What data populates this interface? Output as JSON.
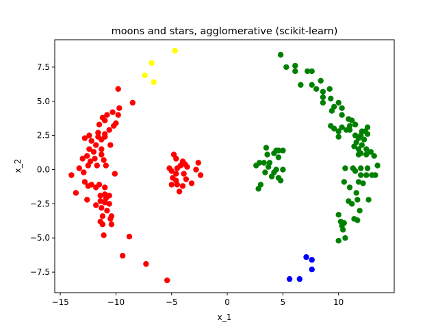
{
  "chart_data": {
    "type": "scatter",
    "title": "moons and stars, agglomerative (scikit-learn)",
    "xlabel": "x_1",
    "ylabel": "x_2",
    "xlim": [
      -15.5,
      15
    ],
    "ylim": [
      -9.0,
      9.5
    ],
    "xticks": [
      -15,
      -10,
      -5,
      0,
      5,
      10
    ],
    "yticks": [
      -7.5,
      -5.0,
      -2.5,
      0.0,
      2.5,
      5.0,
      7.5
    ],
    "xtick_labels": [
      "−15",
      "−10",
      "−5",
      "0",
      "5",
      "10"
    ],
    "ytick_labels": [
      "−7.5",
      "−5.0",
      "−2.5",
      "0.0",
      "2.5",
      "5.0",
      "7.5"
    ],
    "grid": false,
    "legend": "none",
    "series": [
      {
        "color": "#ff0000",
        "points": [
          [
            -9.8,
            5.9
          ],
          [
            -8.5,
            4.9
          ],
          [
            -9.7,
            4.5
          ],
          [
            -10.3,
            4.2
          ],
          [
            -9.8,
            4.0
          ],
          [
            -10.8,
            4.0
          ],
          [
            -11.0,
            3.6
          ],
          [
            -11.2,
            3.8
          ],
          [
            -10.0,
            3.4
          ],
          [
            -11.5,
            3.3
          ],
          [
            -10.2,
            3.2
          ],
          [
            -10.6,
            2.9
          ],
          [
            -11.0,
            2.6
          ],
          [
            -11.6,
            2.7
          ],
          [
            -12.4,
            2.5
          ],
          [
            -11.0,
            2.4
          ],
          [
            -12.8,
            2.3
          ],
          [
            -11.6,
            2.4
          ],
          [
            -12.2,
            2.1
          ],
          [
            -11.3,
            2.2
          ],
          [
            -10.5,
            1.8
          ],
          [
            -11.8,
            1.8
          ],
          [
            -12.4,
            1.5
          ],
          [
            -11.3,
            1.5
          ],
          [
            -12.0,
            1.3
          ],
          [
            -11.3,
            1.1
          ],
          [
            -12.6,
            1.0
          ],
          [
            -13.0,
            0.8
          ],
          [
            -11.9,
            0.8
          ],
          [
            -12.3,
            0.6
          ],
          [
            -11.1,
            0.7
          ],
          [
            -12.5,
            0.3
          ],
          [
            -11.7,
            0.3
          ],
          [
            -10.9,
            0.3
          ],
          [
            -13.3,
            0.1
          ],
          [
            -12.9,
            -0.2
          ],
          [
            -14.0,
            -0.4
          ],
          [
            -10.1,
            -0.3
          ],
          [
            -12.8,
            -0.9
          ],
          [
            -12.2,
            -1.1
          ],
          [
            -11.5,
            -1.1
          ],
          [
            -11.8,
            -1.3
          ],
          [
            -12.5,
            -1.2
          ],
          [
            -11.0,
            -1.3
          ],
          [
            -13.6,
            -1.7
          ],
          [
            -11.0,
            -1.8
          ],
          [
            -11.4,
            -1.9
          ],
          [
            -10.6,
            -1.9
          ],
          [
            -10.9,
            -2.1
          ],
          [
            -12.6,
            -2.2
          ],
          [
            -11.4,
            -2.3
          ],
          [
            -11.0,
            -2.4
          ],
          [
            -10.6,
            -2.5
          ],
          [
            -11.8,
            -2.6
          ],
          [
            -11.3,
            -2.8
          ],
          [
            -10.8,
            -3.0
          ],
          [
            -11.2,
            -3.4
          ],
          [
            -10.4,
            -3.4
          ],
          [
            -10.5,
            -3.6
          ],
          [
            -11.4,
            -3.8
          ],
          [
            -10.4,
            -4.0
          ],
          [
            -11.2,
            -4.0
          ],
          [
            -11.1,
            -4.8
          ],
          [
            -8.8,
            -4.9
          ],
          [
            -9.4,
            -6.3
          ],
          [
            -7.3,
            -6.9
          ],
          [
            -5.4,
            -8.1
          ],
          [
            -4.8,
            1.1
          ],
          [
            -4.6,
            0.8
          ],
          [
            -4.0,
            0.6
          ],
          [
            -3.8,
            0.4
          ],
          [
            -2.6,
            0.5
          ],
          [
            -4.2,
            0.3
          ],
          [
            -4.5,
            0.1
          ],
          [
            -3.6,
            0.2
          ],
          [
            -2.8,
            0.0
          ],
          [
            -5.2,
            0.1
          ],
          [
            -5.0,
            -0.1
          ],
          [
            -4.6,
            -0.3
          ],
          [
            -3.9,
            -0.3
          ],
          [
            -4.9,
            -0.6
          ],
          [
            -2.4,
            -0.4
          ],
          [
            -3.7,
            -0.7
          ],
          [
            -4.6,
            -0.8
          ],
          [
            -5.0,
            -1.1
          ],
          [
            -4.5,
            -1.1
          ],
          [
            -3.2,
            -1.0
          ],
          [
            -4.0,
            -1.2
          ],
          [
            -4.3,
            -1.6
          ]
        ]
      },
      {
        "color": "#ffff00",
        "points": [
          [
            -4.7,
            8.7
          ],
          [
            -6.8,
            7.8
          ],
          [
            -7.4,
            6.9
          ],
          [
            -6.6,
            6.4
          ]
        ]
      },
      {
        "color": "#008000",
        "points": [
          [
            4.8,
            8.4
          ],
          [
            5.3,
            7.5
          ],
          [
            6.1,
            7.6
          ],
          [
            6.1,
            7.2
          ],
          [
            7.2,
            7.2
          ],
          [
            7.6,
            7.2
          ],
          [
            8.4,
            6.5
          ],
          [
            6.6,
            6.2
          ],
          [
            7.6,
            6.2
          ],
          [
            8.0,
            5.9
          ],
          [
            8.6,
            5.7
          ],
          [
            9.2,
            5.9
          ],
          [
            8.6,
            5.3
          ],
          [
            9.3,
            5.2
          ],
          [
            8.6,
            4.9
          ],
          [
            10.0,
            4.9
          ],
          [
            9.6,
            4.6
          ],
          [
            10.3,
            4.5
          ],
          [
            9.4,
            4.3
          ],
          [
            10.3,
            4.0
          ],
          [
            10.9,
            3.7
          ],
          [
            11.2,
            3.6
          ],
          [
            11.0,
            3.2
          ],
          [
            11.5,
            3.3
          ],
          [
            9.3,
            3.2
          ],
          [
            10.3,
            3.1
          ],
          [
            9.6,
            3.0
          ],
          [
            10.7,
            2.9
          ],
          [
            11.0,
            2.9
          ],
          [
            12.6,
            3.1
          ],
          [
            10.0,
            2.8
          ],
          [
            12.1,
            2.8
          ],
          [
            12.4,
            2.8
          ],
          [
            11.5,
            2.5
          ],
          [
            12.0,
            2.5
          ],
          [
            11.8,
            2.3
          ],
          [
            12.3,
            2.2
          ],
          [
            10.0,
            2.4
          ],
          [
            12.6,
            2.6
          ],
          [
            11.6,
            2.0
          ],
          [
            12.1,
            1.8
          ],
          [
            11.4,
            1.7
          ],
          [
            11.8,
            1.5
          ],
          [
            12.5,
            1.5
          ],
          [
            12.9,
            1.3
          ],
          [
            12.0,
            1.2
          ],
          [
            12.5,
            1.1
          ],
          [
            13.2,
            1.0
          ],
          [
            11.8,
            1.1
          ],
          [
            10.6,
            0.1
          ],
          [
            11.3,
            0.1
          ],
          [
            12.0,
            0.1
          ],
          [
            12.6,
            0.1
          ],
          [
            13.5,
            0.3
          ],
          [
            11.5,
            -0.1
          ],
          [
            12.0,
            -0.4
          ],
          [
            12.5,
            -0.4
          ],
          [
            13.0,
            -0.4
          ],
          [
            13.3,
            -0.4
          ],
          [
            10.5,
            -0.9
          ],
          [
            11.8,
            -0.9
          ],
          [
            11.0,
            -1.3
          ],
          [
            12.2,
            -1.0
          ],
          [
            11.6,
            -1.7
          ],
          [
            10.9,
            -2.3
          ],
          [
            11.7,
            -2.2
          ],
          [
            12.7,
            -2.2
          ],
          [
            11.2,
            -2.5
          ],
          [
            11.9,
            -3.0
          ],
          [
            10.0,
            -3.3
          ],
          [
            10.2,
            -3.8
          ],
          [
            11.4,
            -3.6
          ],
          [
            10.5,
            -3.9
          ],
          [
            11.7,
            -3.7
          ],
          [
            10.3,
            -4.1
          ],
          [
            10.4,
            -4.4
          ],
          [
            10.6,
            -5.0
          ],
          [
            10.0,
            -5.2
          ],
          [
            3.5,
            1.6
          ],
          [
            4.4,
            1.4
          ],
          [
            4.6,
            1.4
          ],
          [
            5.0,
            1.4
          ],
          [
            4.2,
            1.2
          ],
          [
            3.6,
            1.1
          ],
          [
            4.6,
            0.9
          ],
          [
            2.9,
            0.5
          ],
          [
            2.6,
            0.3
          ],
          [
            3.3,
            0.5
          ],
          [
            3.8,
            0.5
          ],
          [
            3.7,
            0.2
          ],
          [
            4.4,
            0.0
          ],
          [
            5.0,
            0.0
          ],
          [
            3.4,
            -0.2
          ],
          [
            4.2,
            -0.2
          ],
          [
            4.0,
            -0.5
          ],
          [
            4.6,
            -0.6
          ],
          [
            4.8,
            -0.8
          ],
          [
            3.0,
            -1.1
          ],
          [
            2.8,
            -1.4
          ]
        ]
      },
      {
        "color": "#0000ff",
        "points": [
          [
            7.1,
            -6.4
          ],
          [
            7.6,
            -6.6
          ],
          [
            7.6,
            -7.3
          ],
          [
            5.6,
            -8.0
          ],
          [
            6.5,
            -8.0
          ]
        ]
      }
    ]
  }
}
